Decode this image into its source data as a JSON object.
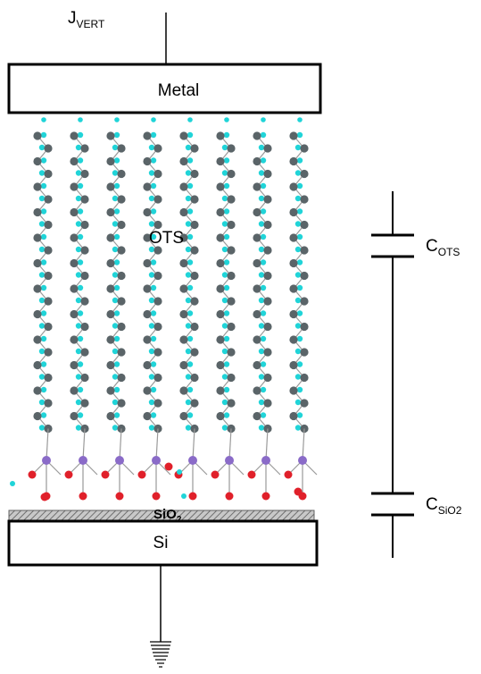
{
  "labels": {
    "current": {
      "main": "J",
      "sub": "VERT"
    },
    "metal": "Metal",
    "ots": "OTS",
    "sio2": {
      "main": "SiO",
      "sub": "2"
    },
    "si": "Si",
    "cap_ots": {
      "main": "C",
      "sub": "OTS"
    },
    "cap_sio2": {
      "main": "C",
      "sub": "SiO2"
    }
  },
  "colors": {
    "carbon": "#5a6468",
    "hydrogen": "#20d4d8",
    "silicon_atom": "#8a6bc8",
    "oxygen": "#e0202a",
    "bond": "#9a9a9a",
    "substrate_hatch": "#808080"
  },
  "molecules": {
    "chains": 8,
    "zigzag_units": 12
  }
}
